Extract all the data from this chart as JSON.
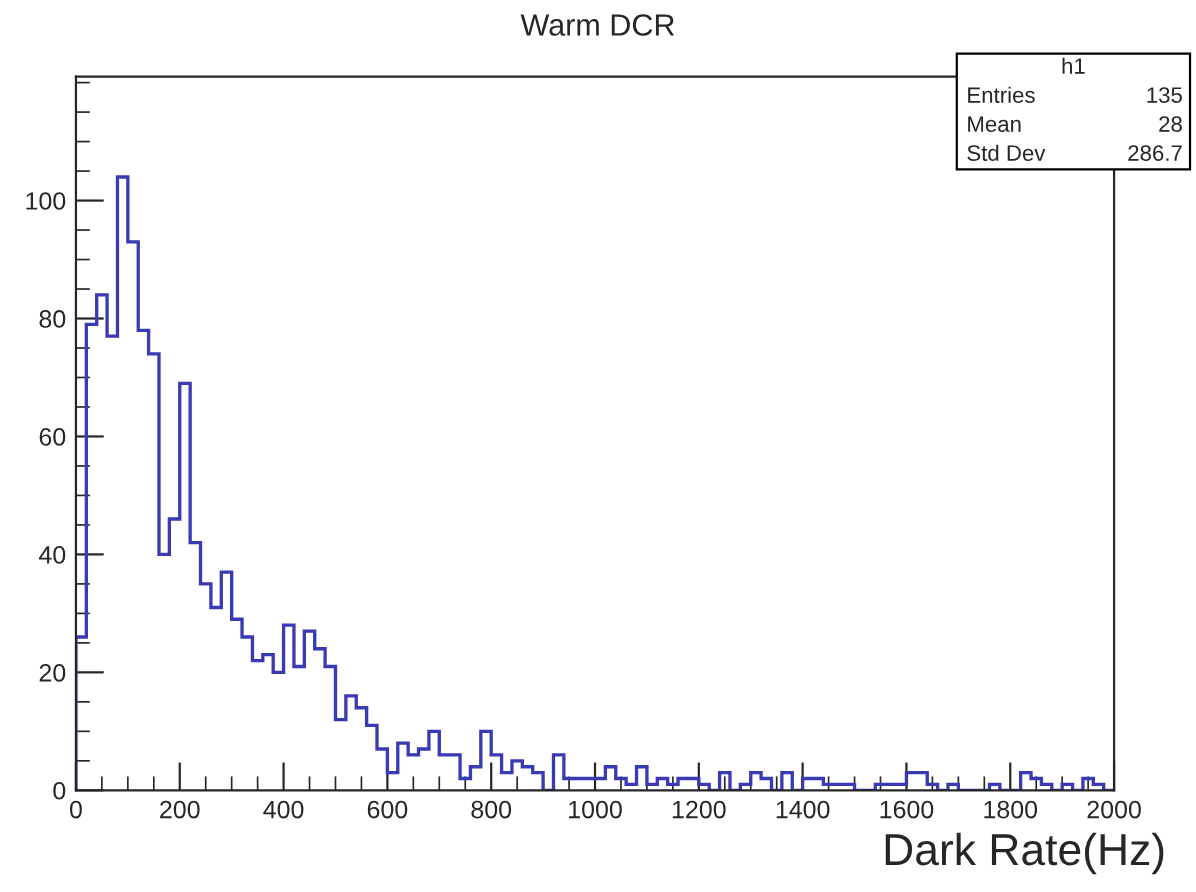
{
  "chart_data": {
    "type": "histogram",
    "title": "Warm DCR",
    "xlabel": "Dark Rate(Hz)",
    "bins": [
      0,
      20,
      40,
      60,
      80,
      100,
      120,
      140,
      160,
      180,
      200,
      220,
      240,
      260,
      280,
      300,
      320,
      340,
      360,
      380,
      400,
      420,
      440,
      460,
      480,
      500,
      520,
      540,
      560,
      580,
      600,
      620,
      640,
      660,
      680,
      700,
      720,
      740,
      760,
      780,
      800,
      820,
      840,
      860,
      880,
      900,
      920,
      940,
      960,
      980,
      1000,
      1020,
      1040,
      1060,
      1080,
      1100,
      1120,
      1140,
      1160,
      1180,
      1200,
      1220,
      1240,
      1260,
      1280,
      1300,
      1320,
      1340,
      1360,
      1380,
      1400,
      1420,
      1440,
      1460,
      1480,
      1500,
      1520,
      1540,
      1560,
      1580,
      1600,
      1620,
      1640,
      1660,
      1680,
      1700,
      1720,
      1740,
      1760,
      1780,
      1800,
      1820,
      1840,
      1860,
      1880,
      1900,
      1920,
      1940,
      1960,
      1980,
      2000
    ],
    "values": [
      26,
      79,
      84,
      77,
      104,
      93,
      78,
      74,
      40,
      46,
      69,
      42,
      35,
      31,
      37,
      29,
      26,
      22,
      23,
      20,
      28,
      21,
      27,
      24,
      21,
      12,
      16,
      14,
      11,
      7,
      3,
      8,
      6,
      7,
      10,
      6,
      6,
      2,
      4,
      10,
      6,
      3,
      5,
      4,
      3,
      0,
      6,
      2,
      2,
      2,
      2,
      4,
      2,
      1,
      4,
      1,
      2,
      1,
      2,
      2,
      1,
      0,
      3,
      0,
      1,
      3,
      2,
      0,
      3,
      0,
      2,
      2,
      1,
      1,
      1,
      0,
      0,
      1,
      1,
      1,
      3,
      3,
      1,
      0,
      1,
      0,
      0,
      0,
      1,
      0,
      0,
      3,
      2,
      1,
      0,
      1,
      0,
      2,
      1,
      0
    ],
    "color": "#3a3ab4",
    "xlim": [
      0,
      2000
    ],
    "xticks": [
      0,
      200,
      400,
      600,
      800,
      1000,
      1200,
      1400,
      1600,
      1800,
      2000
    ],
    "ylim": [
      0,
      121
    ],
    "yticks": [
      0,
      20,
      40,
      60,
      80,
      100
    ],
    "grid": false,
    "legend": false,
    "annotations": [
      "h1",
      "Entries",
      "135",
      "Mean",
      "28",
      "Std Dev",
      "286.7"
    ]
  }
}
